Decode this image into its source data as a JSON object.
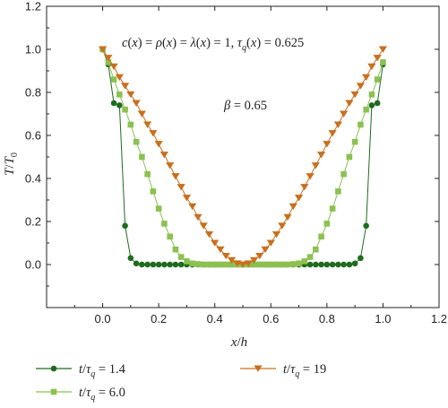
{
  "chart_data": {
    "type": "line",
    "xlabel": "x/h",
    "ylabel": "T/T0",
    "xlim": [
      -0.2,
      1.2
    ],
    "ylim": [
      -0.2,
      1.2
    ],
    "xticks": [
      "0.0",
      "0.2",
      "0.4",
      "0.6",
      "0.8",
      "1.0",
      "1.2"
    ],
    "yticks": [
      "0.0",
      "0.2",
      "0.4",
      "0.6",
      "0.8",
      "1.0",
      "1.2"
    ],
    "grid": false,
    "annotation_params": "c(x) = ρ(x) = λ(x) = 1, τq(x) = 0.625",
    "annotation_beta": "β = 0.65",
    "legend_placement": "bottom-outside",
    "series": [
      {
        "name": "t/τq = 1.4",
        "marker": "circle",
        "color": "#1e6b1e",
        "x": [
          0.0,
          0.02,
          0.04,
          0.06,
          0.08,
          0.1,
          0.12,
          0.14,
          0.16,
          0.18,
          0.2,
          0.22,
          0.24,
          0.26,
          0.28,
          0.3,
          0.32,
          0.34,
          0.36,
          0.38,
          0.4,
          0.42,
          0.44,
          0.46,
          0.48,
          0.5,
          0.52,
          0.54,
          0.56,
          0.58,
          0.6,
          0.62,
          0.64,
          0.66,
          0.68,
          0.7,
          0.72,
          0.74,
          0.76,
          0.78,
          0.8,
          0.82,
          0.84,
          0.86,
          0.88,
          0.9,
          0.92,
          0.94,
          0.96,
          0.98,
          1.0
        ],
        "y": [
          1.0,
          0.93,
          0.75,
          0.74,
          0.18,
          0.03,
          0.005,
          0.0,
          0.0,
          0.0,
          0.0,
          0.0,
          0.0,
          0.0,
          0.0,
          0.0,
          0.0,
          0.0,
          0.0,
          0.0,
          0.0,
          0.0,
          0.0,
          0.0,
          0.0,
          0.0,
          0.0,
          0.0,
          0.0,
          0.0,
          0.0,
          0.0,
          0.0,
          0.0,
          0.0,
          0.0,
          0.0,
          0.0,
          0.0,
          0.0,
          0.0,
          0.0,
          0.0,
          0.0,
          0.0,
          0.005,
          0.03,
          0.18,
          0.74,
          0.75,
          0.93
        ]
      },
      {
        "name": "t/τq = 6.0",
        "marker": "square",
        "color": "#8cc152",
        "x": [
          0.0,
          0.02,
          0.04,
          0.06,
          0.08,
          0.1,
          0.12,
          0.14,
          0.16,
          0.18,
          0.2,
          0.22,
          0.24,
          0.26,
          0.28,
          0.3,
          0.32,
          0.34,
          0.36,
          0.38,
          0.4,
          0.42,
          0.44,
          0.46,
          0.48,
          0.5,
          0.52,
          0.54,
          0.56,
          0.58,
          0.6,
          0.62,
          0.64,
          0.66,
          0.68,
          0.7,
          0.72,
          0.74,
          0.76,
          0.78,
          0.8,
          0.82,
          0.84,
          0.86,
          0.88,
          0.9,
          0.92,
          0.94,
          0.96,
          0.98,
          1.0
        ],
        "y": [
          1.0,
          0.94,
          0.86,
          0.79,
          0.72,
          0.65,
          0.57,
          0.5,
          0.42,
          0.34,
          0.26,
          0.19,
          0.13,
          0.07,
          0.035,
          0.015,
          0.005,
          0.002,
          0.0,
          0.0,
          0.0,
          0.0,
          0.0,
          0.0,
          0.0,
          0.0,
          0.0,
          0.0,
          0.0,
          0.0,
          0.0,
          0.0,
          0.0,
          0.0,
          0.002,
          0.005,
          0.015,
          0.035,
          0.07,
          0.13,
          0.19,
          0.26,
          0.34,
          0.42,
          0.5,
          0.57,
          0.65,
          0.72,
          0.79,
          0.86,
          0.94
        ]
      },
      {
        "name": "t/τq = 19",
        "marker": "triangle-down",
        "color": "#c8701e",
        "x": [
          0.0,
          0.02,
          0.04,
          0.06,
          0.08,
          0.1,
          0.12,
          0.14,
          0.16,
          0.18,
          0.2,
          0.22,
          0.24,
          0.26,
          0.28,
          0.3,
          0.32,
          0.34,
          0.36,
          0.38,
          0.4,
          0.42,
          0.44,
          0.46,
          0.48,
          0.5,
          0.52,
          0.54,
          0.56,
          0.58,
          0.6,
          0.62,
          0.64,
          0.66,
          0.68,
          0.7,
          0.72,
          0.74,
          0.76,
          0.78,
          0.8,
          0.82,
          0.84,
          0.86,
          0.88,
          0.9,
          0.92,
          0.94,
          0.96,
          0.98,
          1.0
        ],
        "y": [
          1.0,
          0.96,
          0.92,
          0.87,
          0.83,
          0.79,
          0.75,
          0.7,
          0.65,
          0.61,
          0.56,
          0.51,
          0.46,
          0.41,
          0.36,
          0.31,
          0.27,
          0.22,
          0.18,
          0.14,
          0.1,
          0.07,
          0.04,
          0.02,
          0.005,
          0.0,
          0.005,
          0.02,
          0.04,
          0.07,
          0.1,
          0.14,
          0.18,
          0.22,
          0.27,
          0.31,
          0.36,
          0.41,
          0.46,
          0.51,
          0.56,
          0.61,
          0.65,
          0.7,
          0.75,
          0.79,
          0.83,
          0.87,
          0.92,
          0.96,
          1.0
        ]
      }
    ]
  }
}
